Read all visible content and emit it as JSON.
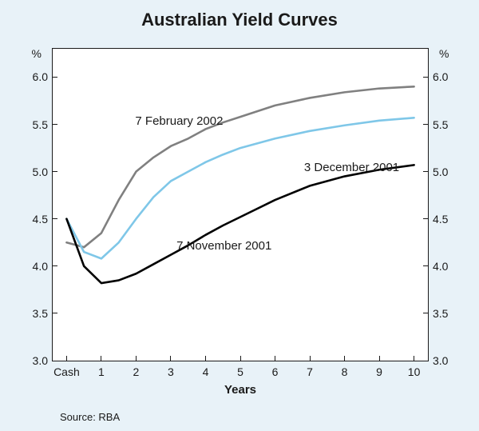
{
  "title": "Australian Yield Curves",
  "x_label": "Years",
  "y_unit": "%",
  "source": "Source: RBA",
  "background_color": "#e8f2f8",
  "plot_background": "#ffffff",
  "border_color": "#1a1a1a",
  "title_fontsize": 22,
  "label_fontsize": 15,
  "tick_fontsize": 14,
  "y_ticks": [
    3.0,
    3.5,
    4.0,
    4.5,
    5.0,
    5.5,
    6.0
  ],
  "y_tick_labels": [
    "3.0",
    "3.5",
    "4.0",
    "4.5",
    "5.0",
    "5.5",
    "6.0"
  ],
  "ylim": [
    3.0,
    6.3
  ],
  "x_categories": [
    "Cash",
    "1",
    "2",
    "3",
    "4",
    "5",
    "6",
    "7",
    "8",
    "9",
    "10"
  ],
  "x_positions": [
    0,
    1,
    2,
    3,
    4,
    5,
    6,
    7,
    8,
    9,
    10
  ],
  "series": [
    {
      "name": "7 February 2002",
      "label": "7 February 2002",
      "color": "#808080",
      "line_width": 2.6,
      "label_x_pct": 22,
      "label_y_pct": 21,
      "data": [
        [
          0,
          4.25
        ],
        [
          0.5,
          4.2
        ],
        [
          1,
          4.35
        ],
        [
          1.5,
          4.7
        ],
        [
          2,
          5.0
        ],
        [
          2.5,
          5.15
        ],
        [
          3,
          5.27
        ],
        [
          3.5,
          5.35
        ],
        [
          4,
          5.45
        ],
        [
          4.5,
          5.52
        ],
        [
          5,
          5.58
        ],
        [
          6,
          5.7
        ],
        [
          7,
          5.78
        ],
        [
          8,
          5.84
        ],
        [
          9,
          5.88
        ],
        [
          10,
          5.9
        ]
      ]
    },
    {
      "name": "3 December 2001",
      "label": "3 December 2001",
      "color": "#7fc7e8",
      "line_width": 2.6,
      "label_x_pct": 67,
      "label_y_pct": 36,
      "data": [
        [
          0,
          4.5
        ],
        [
          0.5,
          4.15
        ],
        [
          1,
          4.08
        ],
        [
          1.5,
          4.25
        ],
        [
          2,
          4.5
        ],
        [
          2.5,
          4.73
        ],
        [
          3,
          4.9
        ],
        [
          3.5,
          5.0
        ],
        [
          4,
          5.1
        ],
        [
          4.5,
          5.18
        ],
        [
          5,
          5.25
        ],
        [
          6,
          5.35
        ],
        [
          7,
          5.43
        ],
        [
          8,
          5.49
        ],
        [
          9,
          5.54
        ],
        [
          10,
          5.57
        ]
      ]
    },
    {
      "name": "7 November 2001",
      "label": "7 November 2001",
      "color": "#000000",
      "line_width": 2.6,
      "label_x_pct": 33,
      "label_y_pct": 61,
      "data": [
        [
          0,
          4.5
        ],
        [
          0.5,
          4.0
        ],
        [
          1,
          3.82
        ],
        [
          1.5,
          3.85
        ],
        [
          2,
          3.92
        ],
        [
          2.5,
          4.02
        ],
        [
          3,
          4.12
        ],
        [
          3.5,
          4.22
        ],
        [
          4,
          4.33
        ],
        [
          4.5,
          4.43
        ],
        [
          5,
          4.52
        ],
        [
          6,
          4.7
        ],
        [
          7,
          4.85
        ],
        [
          8,
          4.95
        ],
        [
          9,
          5.02
        ],
        [
          10,
          5.07
        ]
      ]
    }
  ]
}
